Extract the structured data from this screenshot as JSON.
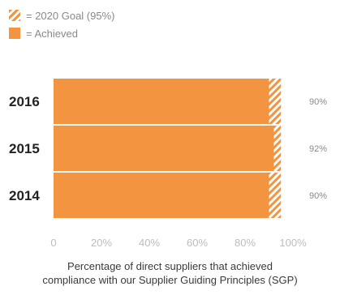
{
  "legend": {
    "goal_label": "= 2020 Goal (95%)",
    "achieved_label": "= Achieved"
  },
  "caption": {
    "line1": "Percentage of direct suppliers that achieved",
    "line2": "compliance with our Supplier Guiding Principles (SGP)"
  },
  "colors": {
    "achieved": "#f29440",
    "goal_hatch": "#f29440",
    "category_text": "#222222",
    "value_text": "#8a8a8a",
    "tick_text": "#bdbdbd"
  },
  "chart_data": {
    "type": "bar",
    "orientation": "horizontal",
    "categories": [
      "2016",
      "2015",
      "2014"
    ],
    "series": [
      {
        "name": "Achieved",
        "values": [
          90,
          92,
          90
        ]
      },
      {
        "name": "2020 Goal (95%)",
        "values": [
          95,
          95,
          95
        ]
      }
    ],
    "value_labels": [
      "90%",
      "92%",
      "90%"
    ],
    "x_ticks": [
      "0",
      "20%",
      "40%",
      "60%",
      "80%",
      "100%"
    ],
    "x_tick_values": [
      0,
      20,
      40,
      60,
      80,
      100
    ],
    "xlim": [
      0,
      100
    ],
    "grid": false,
    "legend_position": "top-left"
  }
}
